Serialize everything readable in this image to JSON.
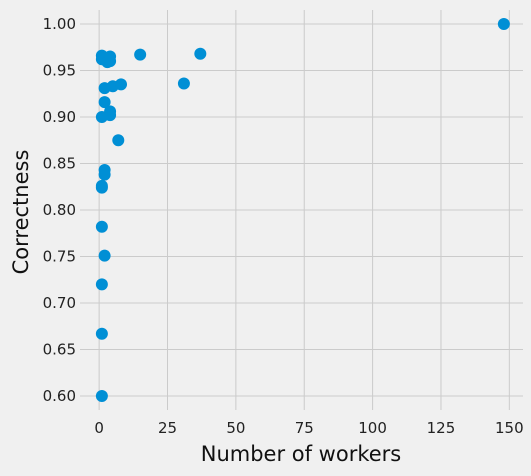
{
  "chart_data": {
    "type": "scatter",
    "title": "",
    "xlabel": "Number of workers",
    "ylabel": "Correctness",
    "xlim": [
      -7,
      155
    ],
    "ylim": [
      0.585,
      1.015
    ],
    "x_ticks": [
      0,
      25,
      50,
      75,
      100,
      125,
      150
    ],
    "y_ticks": [
      0.6,
      0.65,
      0.7,
      0.75,
      0.8,
      0.85,
      0.9,
      0.95,
      1.0
    ],
    "grid": true,
    "marker_color": "#008fd5",
    "background_color": "#f0f0f0",
    "grid_color": "#cbcbcb",
    "points": [
      {
        "x": 148,
        "y": 1.0
      },
      {
        "x": 15,
        "y": 0.967
      },
      {
        "x": 37,
        "y": 0.968
      },
      {
        "x": 31,
        "y": 0.936
      },
      {
        "x": 1,
        "y": 0.966
      },
      {
        "x": 1,
        "y": 0.962
      },
      {
        "x": 2,
        "y": 0.963
      },
      {
        "x": 3,
        "y": 0.959
      },
      {
        "x": 4,
        "y": 0.965
      },
      {
        "x": 4,
        "y": 0.96
      },
      {
        "x": 5,
        "y": 0.933
      },
      {
        "x": 8,
        "y": 0.935
      },
      {
        "x": 2,
        "y": 0.931
      },
      {
        "x": 2,
        "y": 0.916
      },
      {
        "x": 4,
        "y": 0.906
      },
      {
        "x": 4,
        "y": 0.902
      },
      {
        "x": 1,
        "y": 0.9
      },
      {
        "x": 7,
        "y": 0.875
      },
      {
        "x": 2,
        "y": 0.843
      },
      {
        "x": 2,
        "y": 0.838
      },
      {
        "x": 1,
        "y": 0.826
      },
      {
        "x": 1,
        "y": 0.824
      },
      {
        "x": 1,
        "y": 0.782
      },
      {
        "x": 2,
        "y": 0.751
      },
      {
        "x": 1,
        "y": 0.72
      },
      {
        "x": 1,
        "y": 0.667
      },
      {
        "x": 1,
        "y": 0.6
      }
    ]
  }
}
